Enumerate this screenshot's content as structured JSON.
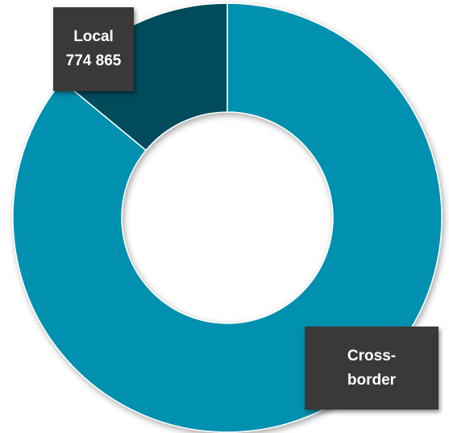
{
  "chart_data": {
    "type": "pie",
    "variant": "donut",
    "title": "",
    "slices": [
      {
        "label_lines": [
          "Local",
          "774 865"
        ],
        "value": 774865,
        "share": 0.14,
        "color": "#004b5c"
      },
      {
        "label_lines": [
          "Cross-",
          "border"
        ],
        "share": 0.86,
        "color": "#0090b0"
      }
    ],
    "start_angle_deg": 0,
    "direction": "counterclockwise",
    "legend": "none"
  }
}
